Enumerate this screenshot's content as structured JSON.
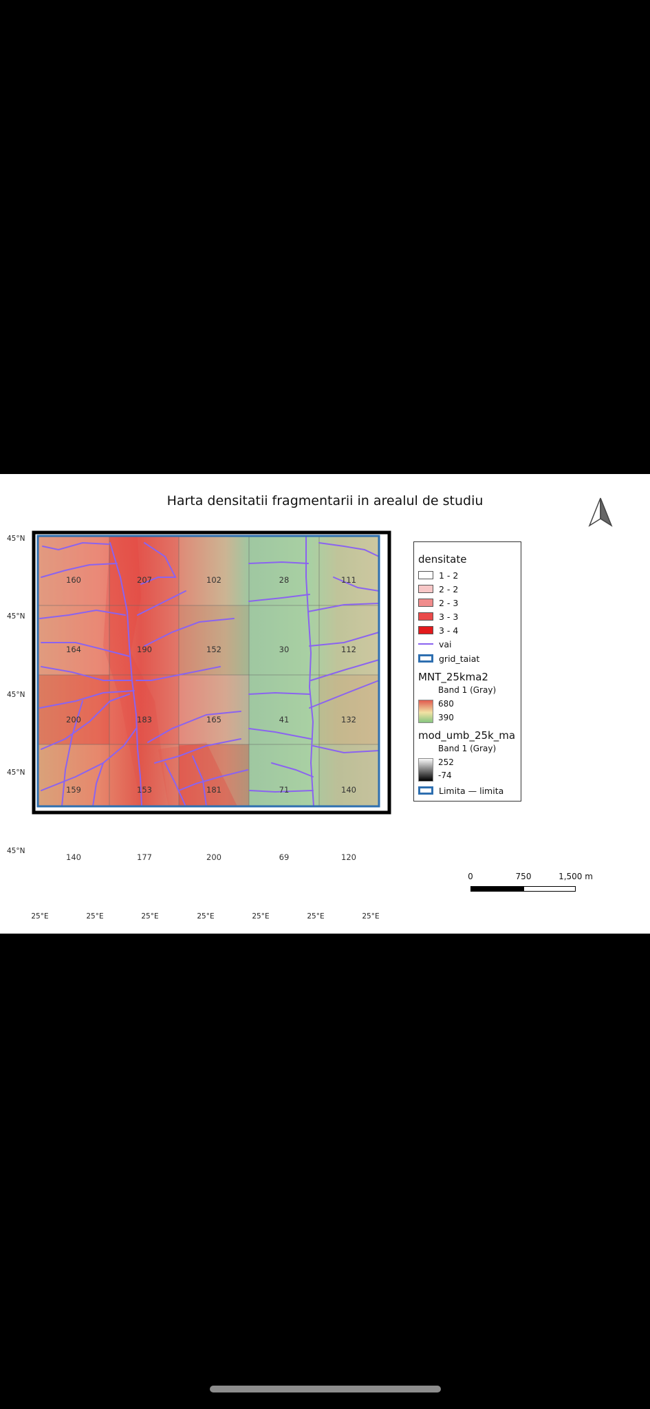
{
  "title": "Harta densitatii fragmentarii in arealul de studiu",
  "north_arrow_icon": "north-arrow-icon",
  "axis_labels": {
    "lat": [
      "45°N",
      "45°N",
      "45°N",
      "45°N",
      "45°N"
    ],
    "lon": [
      "25°E",
      "25°E",
      "25°E",
      "25°E",
      "25°E",
      "25°E",
      "25°E"
    ]
  },
  "grid": {
    "columns": 5,
    "rows": 5,
    "values": [
      [
        "160",
        "207",
        "102",
        "28",
        "111"
      ],
      [
        "164",
        "190",
        "152",
        "30",
        "112"
      ],
      [
        "200",
        "183",
        "165",
        "41",
        "132"
      ],
      [
        "159",
        "153",
        "181",
        "71",
        "140"
      ],
      [
        "140",
        "177",
        "200",
        "69",
        "120"
      ]
    ]
  },
  "legend": {
    "densitate": {
      "title": "densitate",
      "classes": [
        {
          "label": "1 - 2",
          "color": "#ffffff"
        },
        {
          "label": "2 - 2",
          "color": "#f7c7c7"
        },
        {
          "label": "2 - 3",
          "color": "#f08c8c"
        },
        {
          "label": "3 - 3",
          "color": "#ea4a4a"
        },
        {
          "label": "3 - 4",
          "color": "#e31a1c"
        }
      ]
    },
    "vai": {
      "label": "vai",
      "color": "#8a63f0"
    },
    "grid_taiat": {
      "label": "grid_taiat",
      "color": "#2e6fb0"
    },
    "mnt": {
      "title": "MNT_25kma2",
      "band": "Band 1 (Gray)",
      "max": "680",
      "min": "390"
    },
    "umb": {
      "title": "mod_umb_25k_ma",
      "band": "Band 1 (Gray)",
      "max": "252",
      "min": "-74"
    },
    "limita": {
      "label": "Limita — limita",
      "color": "#2e6fb0"
    }
  },
  "scalebar": {
    "labels": [
      "0",
      "750",
      "1,500 m"
    ]
  }
}
